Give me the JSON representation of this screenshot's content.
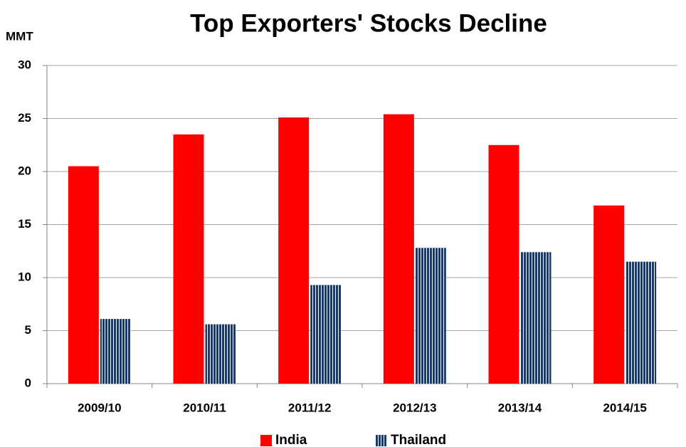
{
  "chart_data": {
    "type": "bar",
    "title": "Top Exporters' Stocks Decline",
    "ylabel": "MMT",
    "categories": [
      "2009/10",
      "2010/11",
      "2011/12",
      "2012/13",
      "2013/14",
      "2014/15"
    ],
    "series": [
      {
        "name": "India",
        "color": "#ff0000",
        "values": [
          20.5,
          23.5,
          25.1,
          25.4,
          22.5,
          16.8
        ]
      },
      {
        "name": "Thailand",
        "color": "#1f3864",
        "hatch": "vertical",
        "values": [
          6.1,
          5.6,
          9.3,
          12.8,
          12.4,
          11.5
        ]
      }
    ],
    "ylim": [
      0,
      30
    ],
    "yticks": [
      0,
      5,
      10,
      15,
      20,
      25,
      30
    ],
    "grid": true,
    "legend": "bottom"
  }
}
